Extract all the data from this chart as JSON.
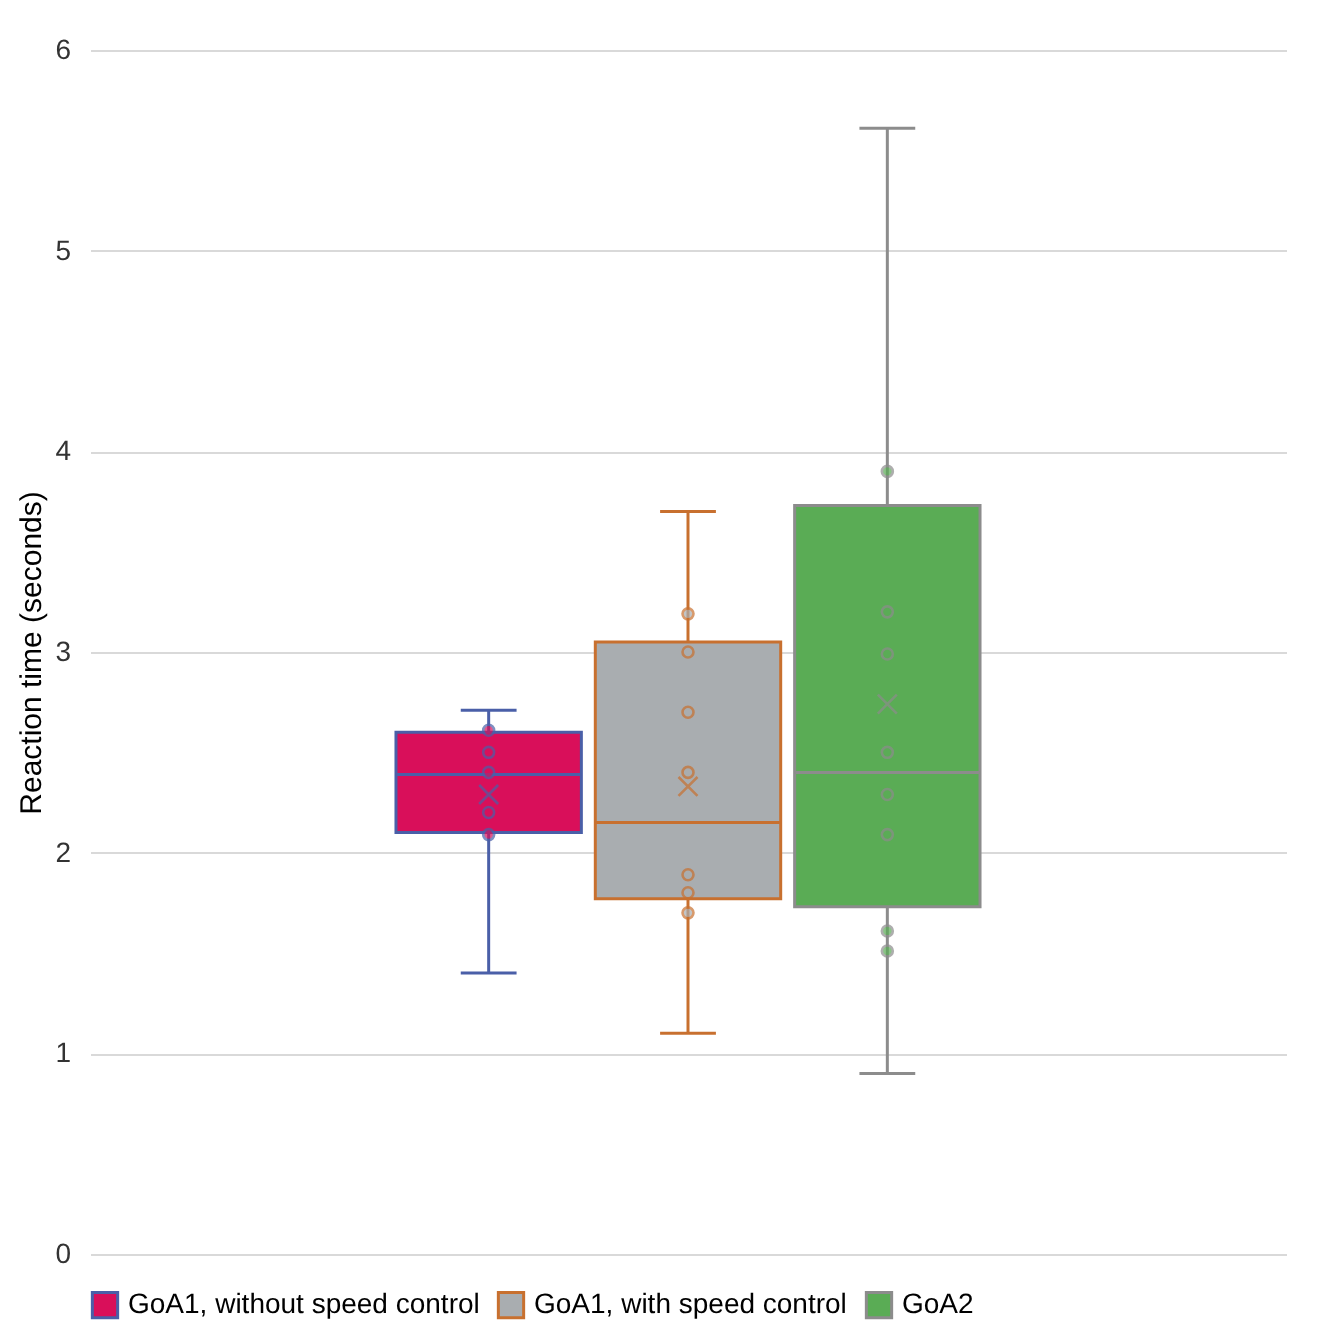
{
  "chart_data": {
    "type": "box",
    "ylabel": "Reaction time (seconds)",
    "categories": [
      null
    ],
    "ylim": [
      0,
      6
    ],
    "yticks": [
      0,
      1,
      2,
      3,
      4,
      5,
      6
    ],
    "grid": "y",
    "legend": "bottom",
    "marker": "circle",
    "series": [
      {
        "name": "GoA1, without speed control",
        "color": "#d90f5a",
        "boxes": [
          {
            "low": 1.4,
            "q1": 2.1,
            "median": 2.39,
            "q3": 2.6,
            "high": 2.71,
            "mean": 2.29,
            "outliers": [
              2.61,
              2.5,
              2.4,
              2.2,
              2.09
            ]
          }
        ]
      },
      {
        "name": "GoA1, with speed control",
        "color": "#a9adb0",
        "boxes": [
          {
            "low": 1.1,
            "q1": 1.77,
            "median": 2.15,
            "q3": 3.05,
            "high": 3.7,
            "mean": 2.33,
            "outliers": [
              3.19,
              3.0,
              2.7,
              2.4,
              1.89,
              1.8,
              1.7
            ]
          }
        ]
      },
      {
        "name": "GoA2",
        "color": "#5aac55",
        "boxes": [
          {
            "low": 0.9,
            "q1": 1.73,
            "median": 2.4,
            "q3": 3.73,
            "high": 5.61,
            "mean": 2.74,
            "outliers": [
              3.9,
              3.2,
              2.99,
              2.5,
              2.29,
              2.09,
              1.61,
              1.51
            ]
          }
        ]
      }
    ]
  }
}
